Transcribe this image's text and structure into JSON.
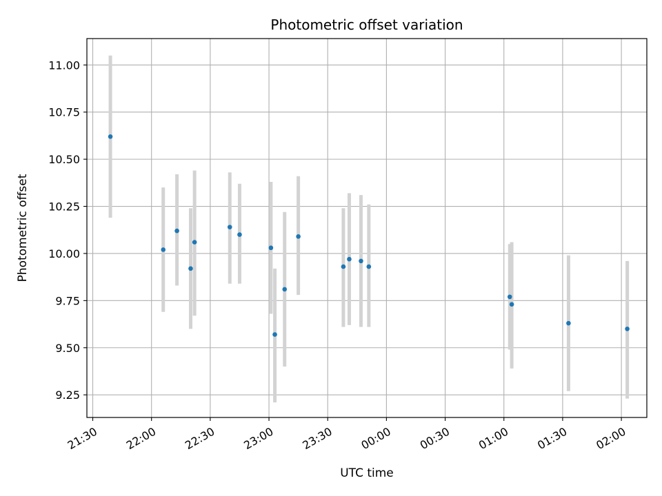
{
  "chart_data": {
    "type": "scatter",
    "title": "Photometric offset variation",
    "xlabel": "UTC time",
    "ylabel": "Photometric offset",
    "x_is_time": true,
    "xlim": [
      "21:27",
      "02:13"
    ],
    "ylim": [
      9.13,
      11.14
    ],
    "x_ticks": [
      "21:30",
      "22:00",
      "22:30",
      "23:00",
      "23:30",
      "00:00",
      "00:30",
      "01:00",
      "01:30",
      "02:00"
    ],
    "y_ticks": [
      "9.25",
      "9.50",
      "9.75",
      "10.00",
      "10.25",
      "10.50",
      "10.75",
      "11.00"
    ],
    "grid": true,
    "point_color": "#1f77b4",
    "errorbar_color": "#d3d3d3",
    "points": [
      {
        "x": "21:39",
        "y": 10.62,
        "ylo": 10.19,
        "yhi": 11.05
      },
      {
        "x": "22:06",
        "y": 10.02,
        "ylo": 9.69,
        "yhi": 10.35
      },
      {
        "x": "22:13",
        "y": 10.12,
        "ylo": 9.83,
        "yhi": 10.42
      },
      {
        "x": "22:20",
        "y": 9.92,
        "ylo": 9.6,
        "yhi": 10.24
      },
      {
        "x": "22:22",
        "y": 10.06,
        "ylo": 9.67,
        "yhi": 10.44
      },
      {
        "x": "22:40",
        "y": 10.14,
        "ylo": 9.84,
        "yhi": 10.43
      },
      {
        "x": "22:45",
        "y": 10.1,
        "ylo": 9.84,
        "yhi": 10.37
      },
      {
        "x": "23:01",
        "y": 10.03,
        "ylo": 9.68,
        "yhi": 10.38
      },
      {
        "x": "23:03",
        "y": 9.57,
        "ylo": 9.21,
        "yhi": 9.92
      },
      {
        "x": "23:08",
        "y": 9.81,
        "ylo": 9.4,
        "yhi": 10.22
      },
      {
        "x": "23:15",
        "y": 10.09,
        "ylo": 9.78,
        "yhi": 10.41
      },
      {
        "x": "23:38",
        "y": 9.93,
        "ylo": 9.61,
        "yhi": 10.24
      },
      {
        "x": "23:41",
        "y": 9.97,
        "ylo": 9.62,
        "yhi": 10.32
      },
      {
        "x": "23:47",
        "y": 9.96,
        "ylo": 9.61,
        "yhi": 10.31
      },
      {
        "x": "23:51",
        "y": 9.93,
        "ylo": 9.61,
        "yhi": 10.26
      },
      {
        "x": "01:03",
        "y": 9.77,
        "ylo": 9.49,
        "yhi": 10.05
      },
      {
        "x": "01:04",
        "y": 9.73,
        "ylo": 9.39,
        "yhi": 10.06
      },
      {
        "x": "01:33",
        "y": 9.63,
        "ylo": 9.27,
        "yhi": 9.99
      },
      {
        "x": "02:03",
        "y": 9.6,
        "ylo": 9.23,
        "yhi": 9.96
      }
    ]
  }
}
